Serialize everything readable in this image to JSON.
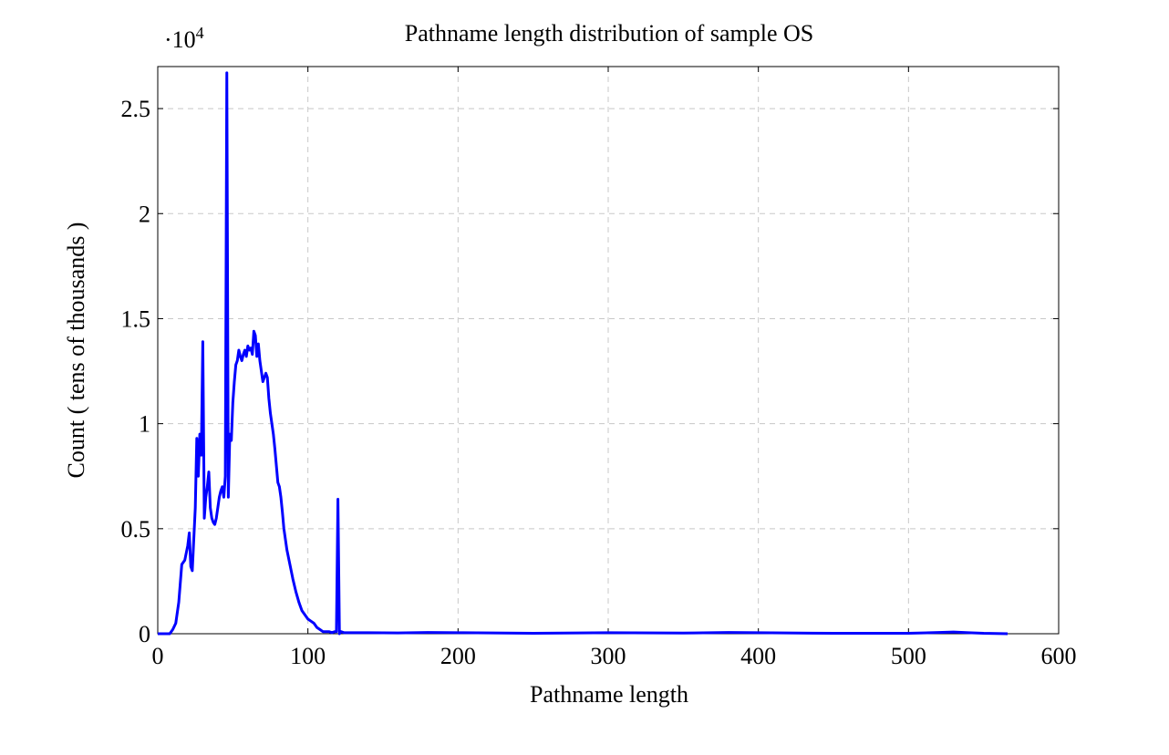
{
  "chart_data": {
    "type": "line",
    "title": "Pathname length distribution of sample OS",
    "x_label": "Pathname length",
    "y_label": "Count ( tens of thousands )",
    "y_multiplier": "·10",
    "y_multiplier_exponent": "4",
    "xlim": [
      0,
      600
    ],
    "xticks": [
      0,
      100,
      200,
      300,
      400,
      500,
      600
    ],
    "ylim": [
      0,
      2.7
    ],
    "yticks": [
      0,
      0.5,
      1,
      1.5,
      2,
      2.5
    ],
    "grid": true,
    "series": [
      {
        "color": "#0000ff",
        "x": [
          0,
          4,
          8,
          10,
          12,
          14,
          16,
          18,
          20,
          21,
          22,
          23,
          24,
          25,
          26,
          27,
          28,
          29,
          30,
          31,
          32,
          33,
          34,
          35,
          36,
          37,
          38,
          39,
          40,
          41,
          42,
          43,
          44,
          45,
          46,
          47,
          48,
          49,
          50,
          51,
          52,
          53,
          54,
          55,
          56,
          57,
          58,
          59,
          60,
          61,
          62,
          63,
          64,
          65,
          66,
          67,
          68,
          69,
          70,
          71,
          72,
          73,
          74,
          75,
          76,
          77,
          78,
          79,
          80,
          81,
          82,
          83,
          84,
          85,
          86,
          88,
          90,
          92,
          94,
          96,
          98,
          100,
          102,
          104,
          106,
          108,
          110,
          112,
          114,
          116,
          118,
          119,
          120,
          121,
          122,
          124,
          130,
          140,
          160,
          180,
          200,
          250,
          300,
          350,
          380,
          400,
          450,
          500,
          520,
          530,
          540,
          550,
          566
        ],
        "values": [
          0,
          0,
          0,
          0.02,
          0.05,
          0.15,
          0.33,
          0.35,
          0.42,
          0.48,
          0.32,
          0.3,
          0.45,
          0.6,
          0.93,
          0.75,
          0.95,
          0.85,
          1.39,
          0.55,
          0.65,
          0.7,
          0.77,
          0.6,
          0.55,
          0.53,
          0.52,
          0.55,
          0.6,
          0.65,
          0.68,
          0.7,
          0.65,
          0.75,
          2.67,
          0.65,
          0.95,
          0.92,
          1.1,
          1.2,
          1.28,
          1.3,
          1.35,
          1.32,
          1.3,
          1.33,
          1.35,
          1.32,
          1.37,
          1.35,
          1.36,
          1.33,
          1.44,
          1.42,
          1.32,
          1.38,
          1.3,
          1.25,
          1.2,
          1.22,
          1.24,
          1.22,
          1.12,
          1.05,
          1.0,
          0.95,
          0.88,
          0.8,
          0.72,
          0.7,
          0.65,
          0.58,
          0.5,
          0.45,
          0.4,
          0.33,
          0.26,
          0.2,
          0.15,
          0.11,
          0.09,
          0.07,
          0.06,
          0.05,
          0.03,
          0.02,
          0.01,
          0.01,
          0.01,
          0.005,
          0.01,
          0.01,
          0.64,
          0,
          0.01,
          0.005,
          0.005,
          0.005,
          0.004,
          0.006,
          0.005,
          0.002,
          0.005,
          0.003,
          0.006,
          0.005,
          0.002,
          0.002,
          0.006,
          0.008,
          0.005,
          0.002,
          0
        ]
      }
    ]
  }
}
